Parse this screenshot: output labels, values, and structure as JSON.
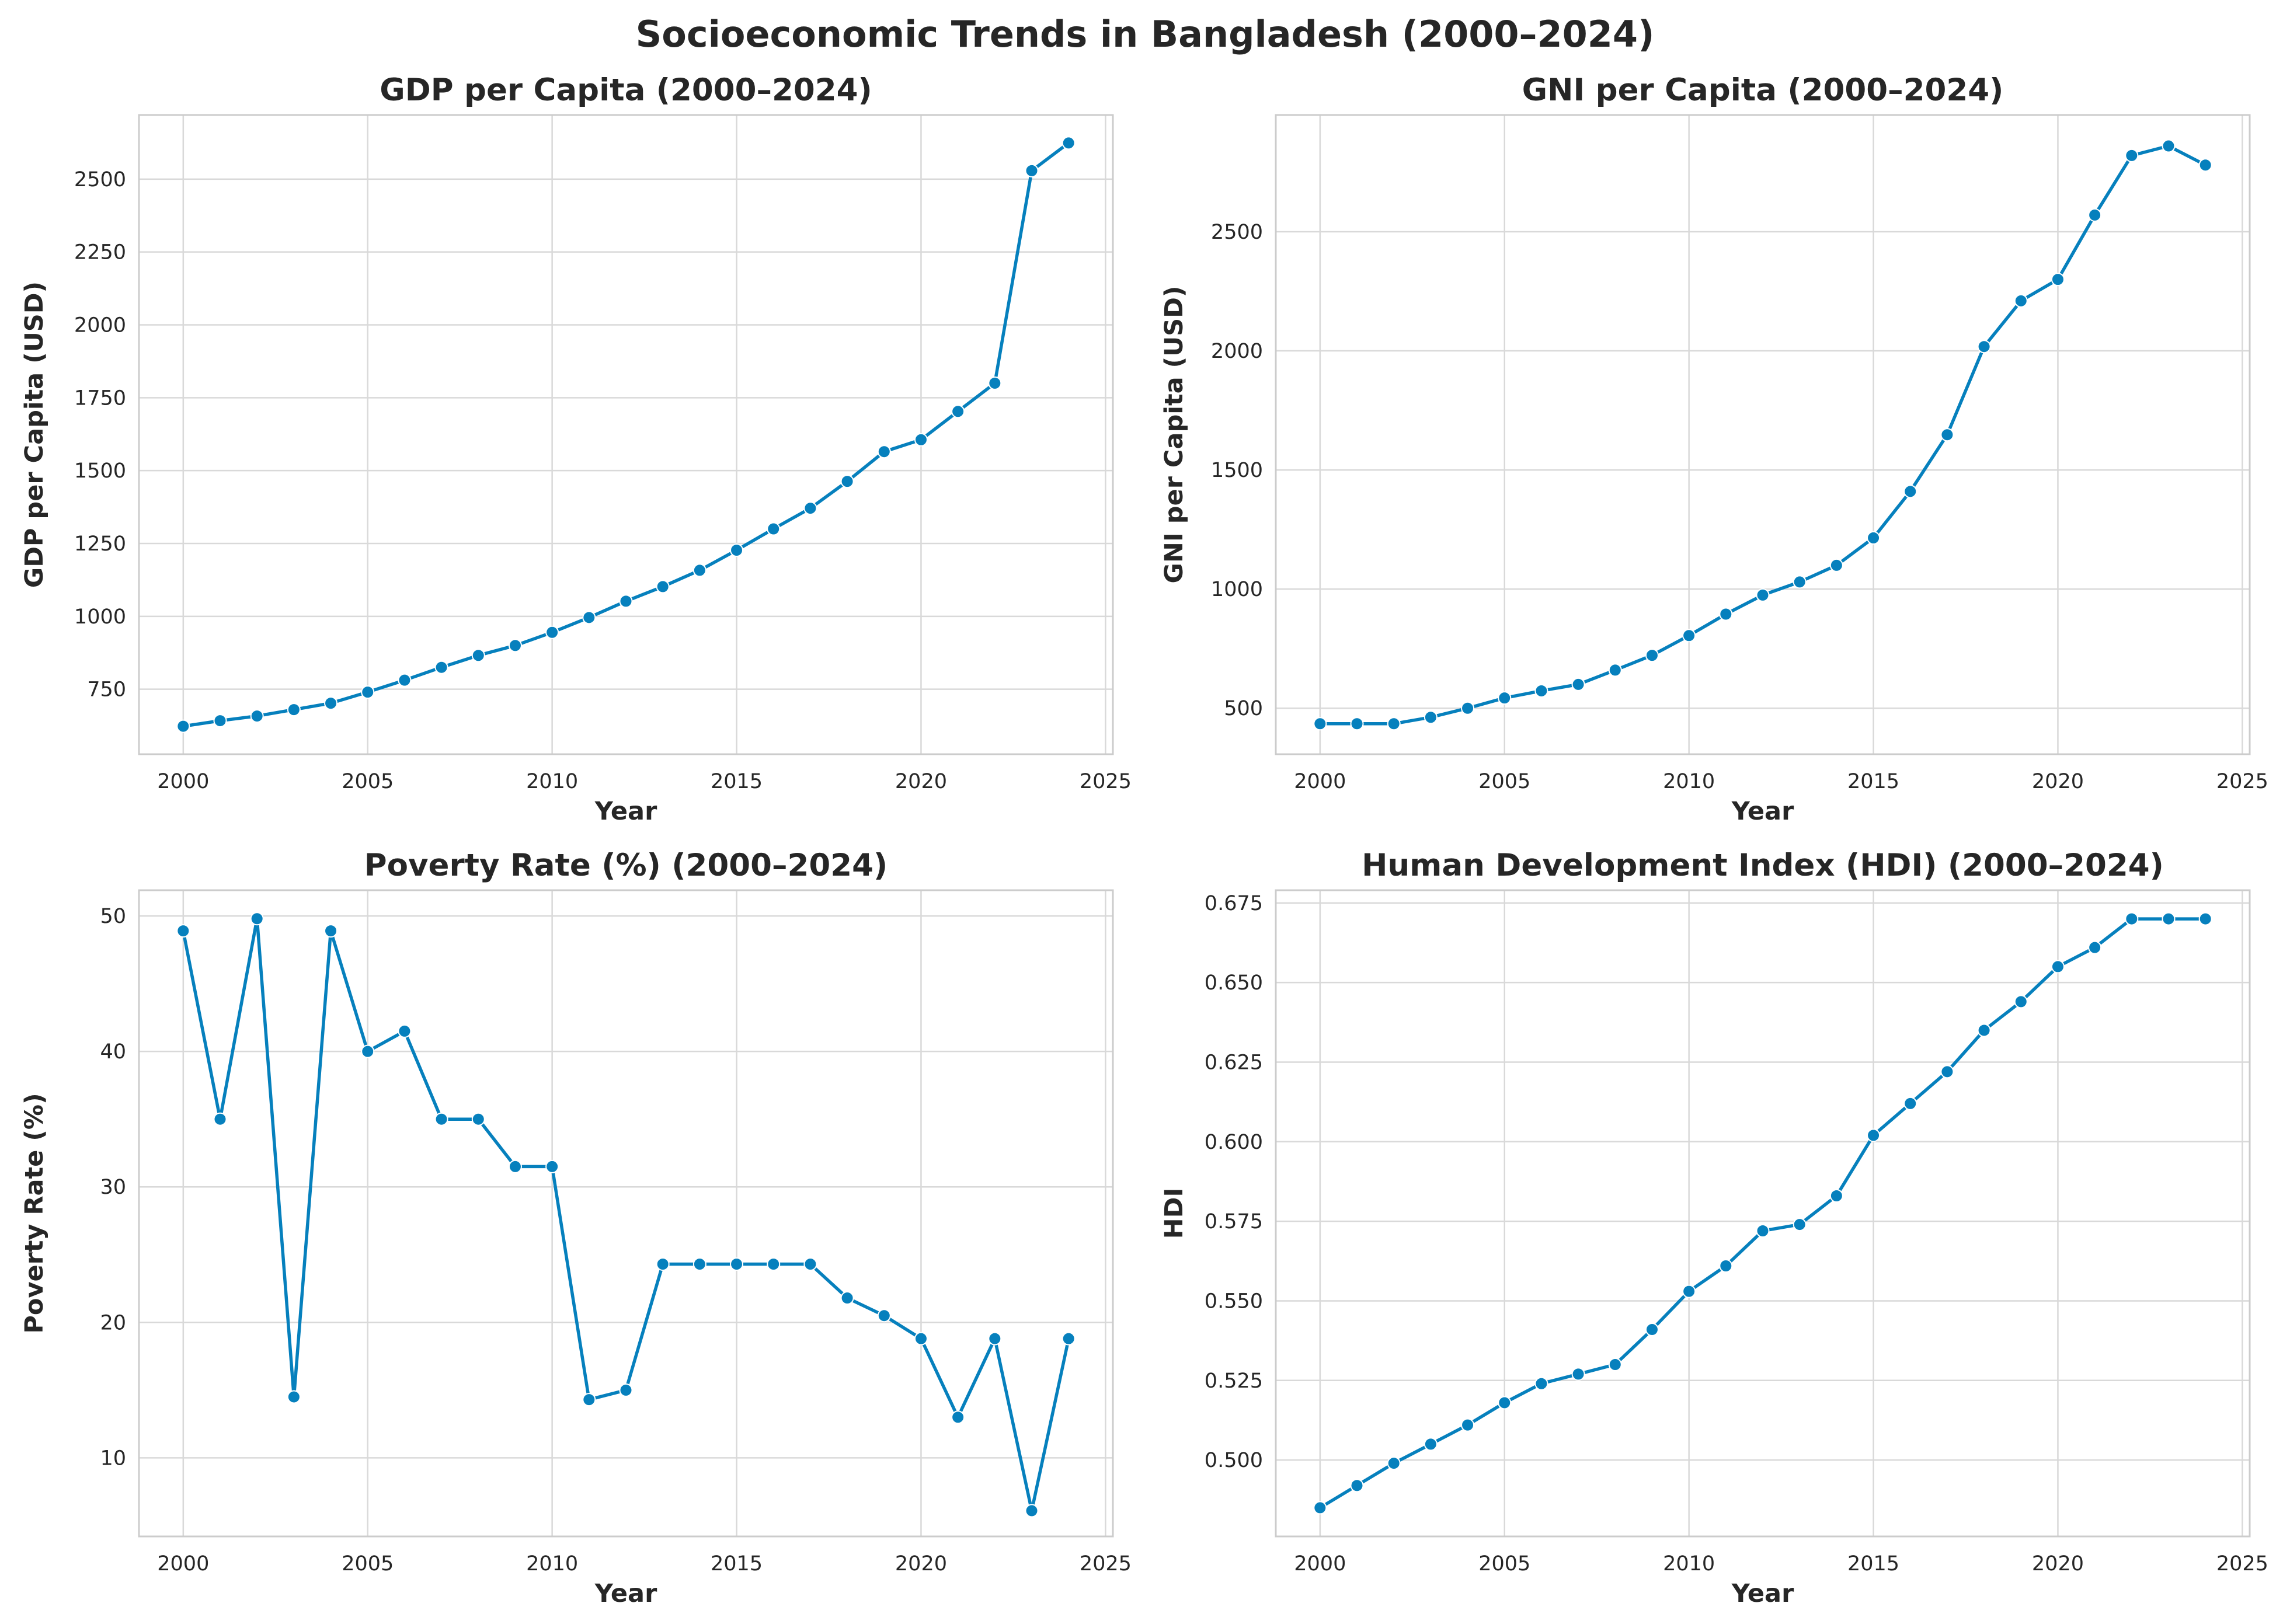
{
  "page_title": "Socioeconomic Trends in Bangladesh (2000–2024)",
  "colors": {
    "line": "#0680bd",
    "grid": "#d9d9d9",
    "axes": "#cccccc",
    "text": "#262626"
  },
  "chart_data": [
    {
      "type": "line",
      "title": "GDP per Capita (2000–2024)",
      "xlabel": "Year",
      "ylabel": "GDP per Capita (USD)",
      "xlim": [
        1998.8,
        2025.2
      ],
      "ylim": [
        527,
        2720
      ],
      "xticks": [
        2000,
        2005,
        2010,
        2015,
        2020,
        2025
      ],
      "yticks": [
        750,
        1000,
        1250,
        1500,
        1750,
        2000,
        2250,
        2500
      ],
      "grid": true,
      "x": [
        2000,
        2001,
        2002,
        2003,
        2004,
        2005,
        2006,
        2007,
        2008,
        2009,
        2010,
        2011,
        2012,
        2013,
        2014,
        2015,
        2016,
        2017,
        2018,
        2019,
        2020,
        2021,
        2022,
        2023,
        2024
      ],
      "y": [
        623,
        642,
        658,
        680,
        702,
        740,
        781,
        825,
        866,
        900,
        945,
        996,
        1052,
        1102,
        1158,
        1227,
        1300,
        1371,
        1463,
        1565,
        1606,
        1703,
        1800,
        2529,
        2624
      ]
    },
    {
      "type": "line",
      "title": "GNI per Capita (2000–2024)",
      "xlabel": "Year",
      "ylabel": "GNI per Capita (USD)",
      "xlim": [
        1998.8,
        2025.2
      ],
      "ylim": [
        307,
        2990
      ],
      "xticks": [
        2000,
        2005,
        2010,
        2015,
        2020,
        2025
      ],
      "yticks": [
        500,
        1000,
        1500,
        2000,
        2500
      ],
      "grid": true,
      "x": [
        2000,
        2001,
        2002,
        2003,
        2004,
        2005,
        2006,
        2007,
        2008,
        2009,
        2010,
        2011,
        2012,
        2013,
        2014,
        2015,
        2016,
        2017,
        2018,
        2019,
        2020,
        2021,
        2022,
        2023,
        2024
      ],
      "y": [
        435,
        435,
        435,
        462,
        500,
        543,
        573,
        600,
        660,
        722,
        805,
        895,
        975,
        1030,
        1100,
        1215,
        1410,
        1648,
        2018,
        2210,
        2300,
        2570,
        2820,
        2860,
        2780
      ]
    },
    {
      "type": "line",
      "title": "Poverty Rate (%) (2000–2024)",
      "xlabel": "Year",
      "ylabel": "Poverty Rate (%)",
      "xlim": [
        1998.8,
        2025.2
      ],
      "ylim": [
        4.2,
        51.9
      ],
      "xticks": [
        2000,
        2005,
        2010,
        2015,
        2020,
        2025
      ],
      "yticks": [
        10,
        20,
        30,
        40,
        50
      ],
      "grid": true,
      "x": [
        2000,
        2001,
        2002,
        2003,
        2004,
        2005,
        2006,
        2007,
        2008,
        2009,
        2010,
        2011,
        2012,
        2013,
        2014,
        2015,
        2016,
        2017,
        2018,
        2019,
        2020,
        2021,
        2022,
        2023,
        2024
      ],
      "y": [
        48.9,
        35.0,
        49.8,
        14.5,
        48.9,
        40.0,
        41.5,
        35.0,
        35.0,
        31.5,
        31.5,
        14.3,
        15.0,
        24.3,
        24.3,
        24.3,
        24.3,
        24.3,
        21.8,
        20.5,
        18.8,
        13.0,
        18.8,
        6.1,
        18.8
      ]
    },
    {
      "type": "line",
      "title": "Human Development Index (HDI) (2000–2024)",
      "xlabel": "Year",
      "ylabel": "HDI",
      "xlim": [
        1998.8,
        2025.2
      ],
      "ylim": [
        0.476,
        0.679
      ],
      "xticks": [
        2000,
        2005,
        2010,
        2015,
        2020,
        2025
      ],
      "yticks": [
        0.5,
        0.525,
        0.55,
        0.575,
        0.6,
        0.625,
        0.65,
        0.675
      ],
      "ytick_decimals": 3,
      "grid": true,
      "x": [
        2000,
        2001,
        2002,
        2003,
        2004,
        2005,
        2006,
        2007,
        2008,
        2009,
        2010,
        2011,
        2012,
        2013,
        2014,
        2015,
        2016,
        2017,
        2018,
        2019,
        2020,
        2021,
        2022,
        2023,
        2024
      ],
      "y": [
        0.485,
        0.492,
        0.499,
        0.505,
        0.511,
        0.518,
        0.524,
        0.527,
        0.53,
        0.541,
        0.553,
        0.561,
        0.572,
        0.574,
        0.583,
        0.602,
        0.612,
        0.622,
        0.635,
        0.644,
        0.655,
        0.661,
        0.67,
        0.67,
        0.67
      ]
    }
  ]
}
